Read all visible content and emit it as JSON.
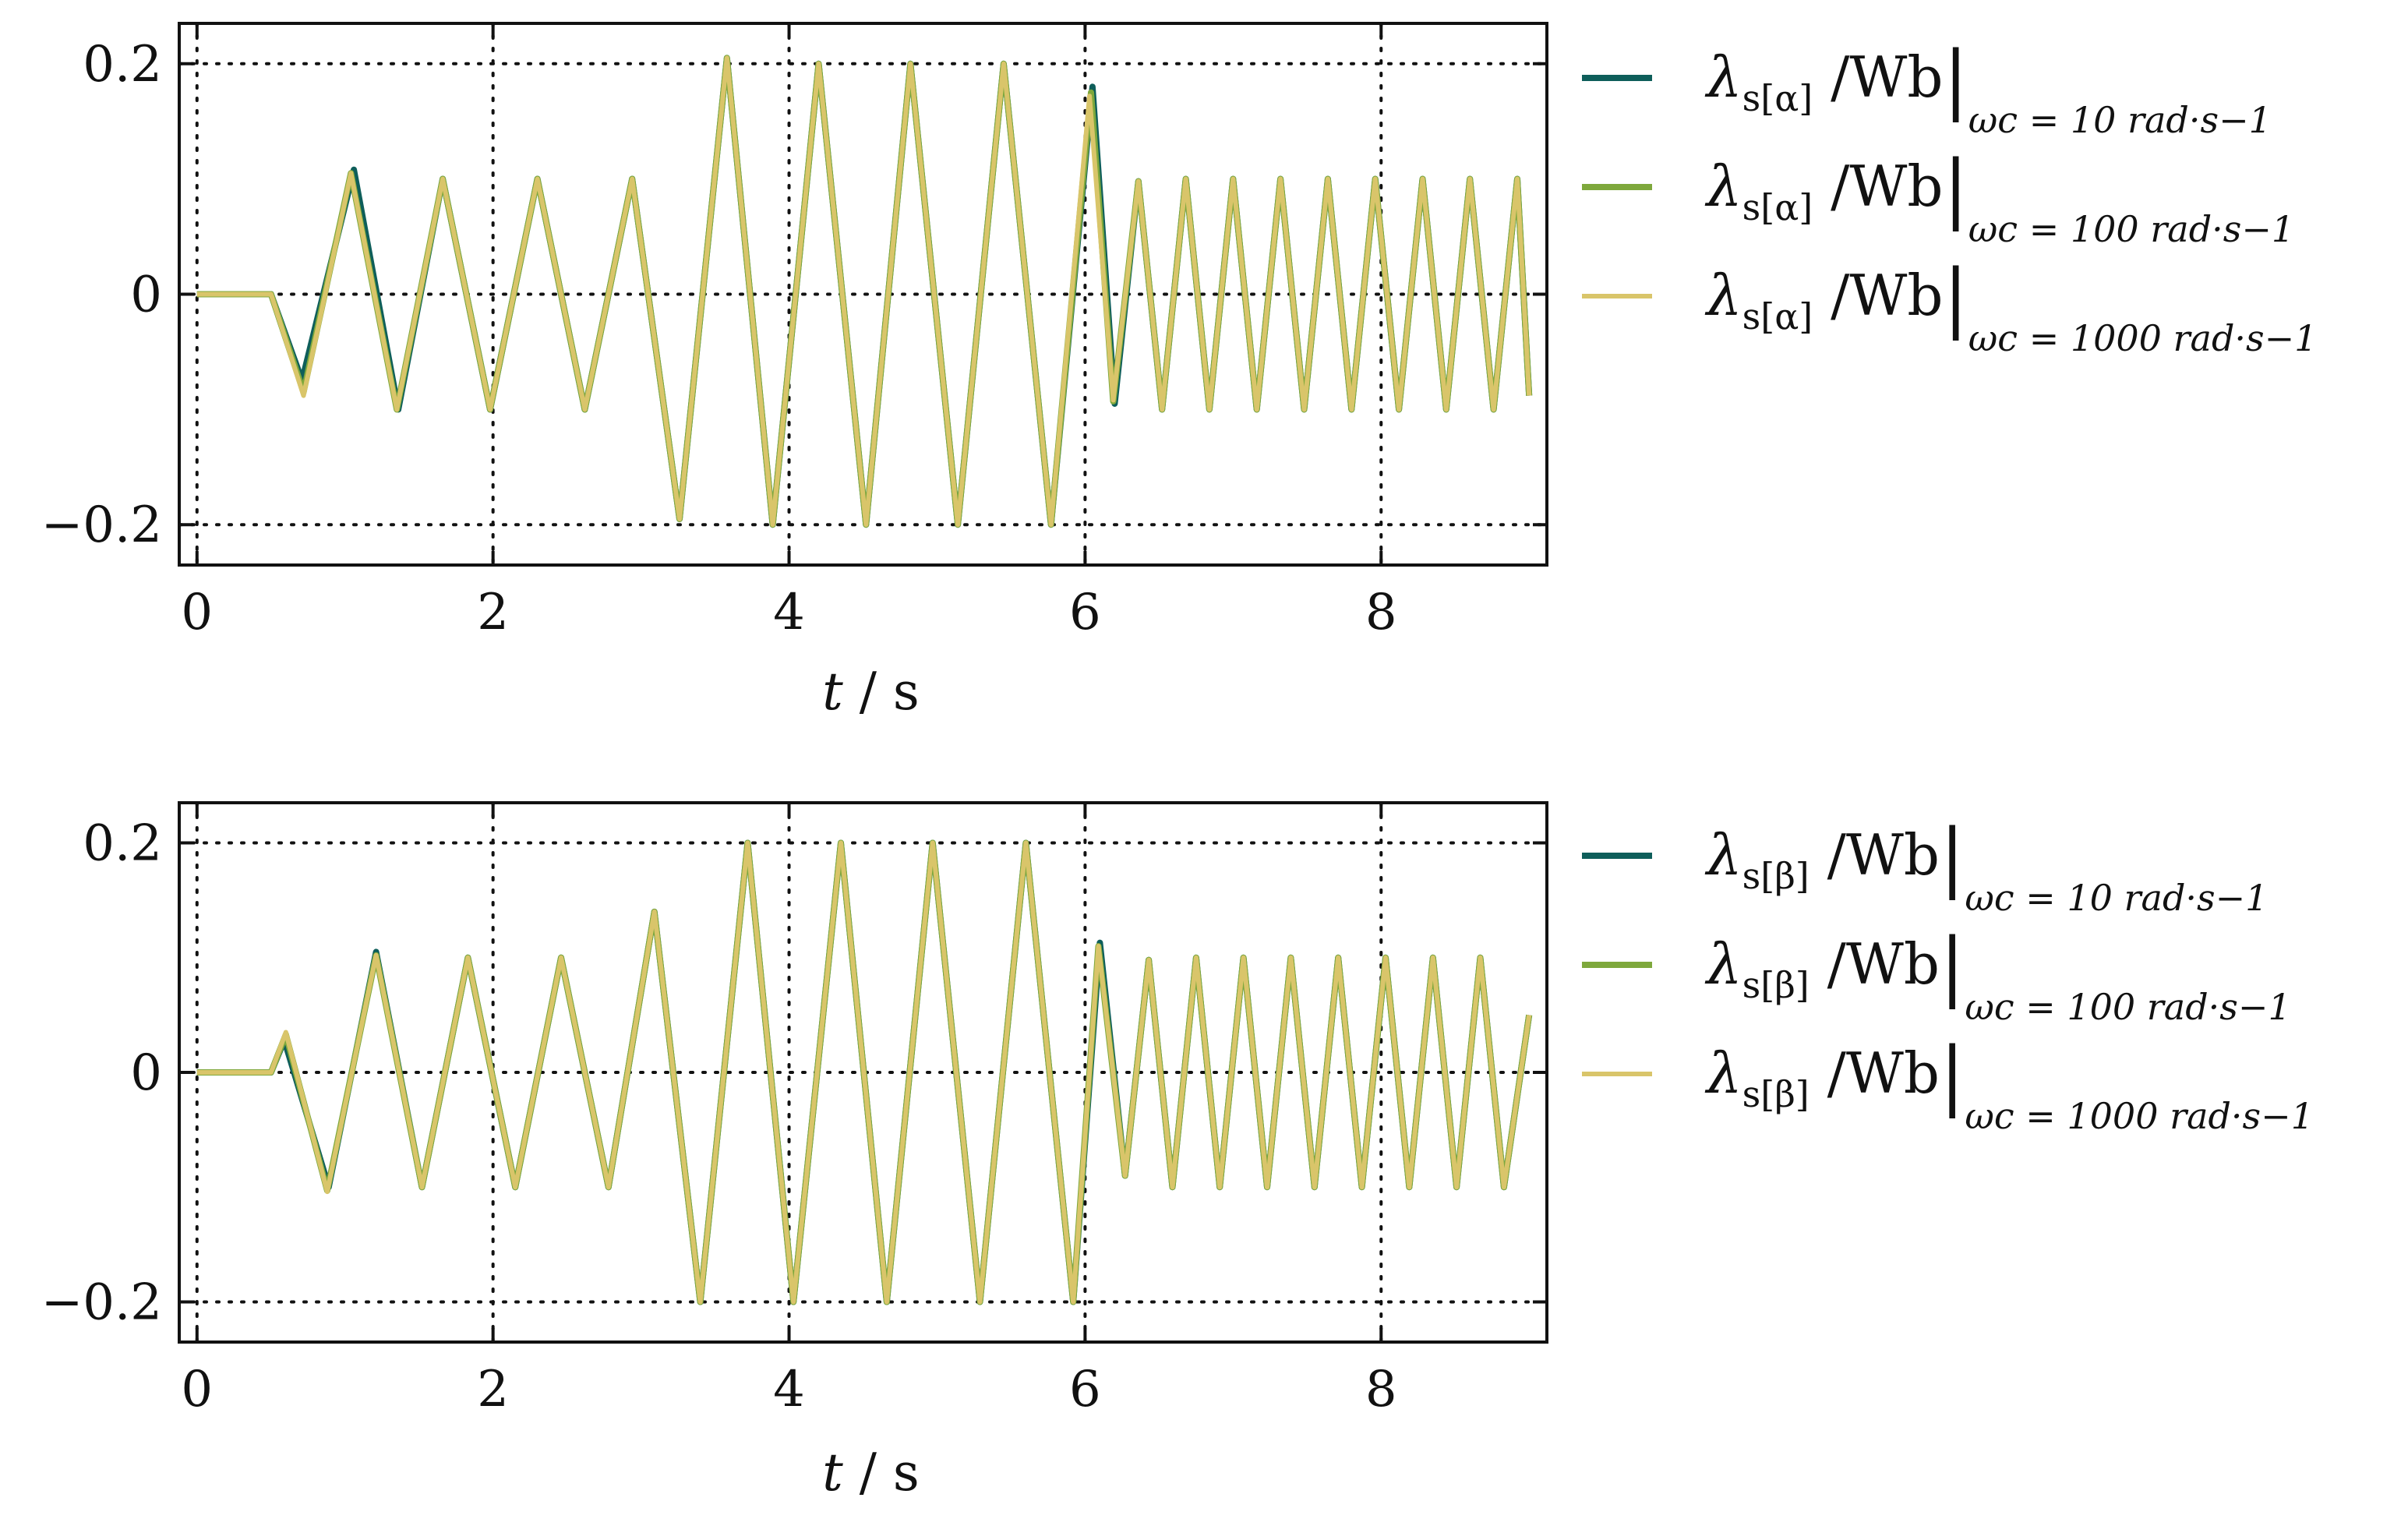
{
  "chart_data": [
    {
      "type": "line",
      "xlabel": "t / s",
      "xlim": [
        -0.12,
        9.12
      ],
      "ylim": [
        -0.235,
        0.235
      ],
      "xticks": [
        0,
        2,
        4,
        6,
        8
      ],
      "yticks": [
        -0.2,
        0,
        0.2
      ],
      "xtick_labels": [
        "0",
        "2",
        "4",
        "6",
        "8"
      ],
      "ytick_labels": [
        "−0.2",
        "0",
        "0.2"
      ],
      "grid": "dotted",
      "legend_position": "right",
      "series": [
        {
          "name": "λs[α] / Wb |ωc = 10 rad·s−1",
          "main": "λ",
          "sub1": "s[α]",
          "rest": "/Wb",
          "sub2": "ωc = 10 rad·s−1",
          "color": "#0e5e5a",
          "x": [
            0,
            0.5,
            0.71,
            1.06,
            1.36,
            1.66,
            1.98,
            2.3,
            2.62,
            2.94,
            3.26,
            3.58,
            3.89,
            4.2,
            4.52,
            4.82,
            5.14,
            5.45,
            5.77,
            6.05,
            6.2,
            6.36,
            6.52,
            6.68,
            6.84,
            7.0,
            7.16,
            7.32,
            7.48,
            7.64,
            7.8,
            7.96,
            8.12,
            8.28,
            8.44,
            8.6,
            8.76,
            8.92,
            9.0
          ],
          "y": [
            0,
            0,
            -0.075,
            0.108,
            -0.1,
            0.1,
            -0.1,
            0.1,
            -0.1,
            0.1,
            -0.195,
            0.205,
            -0.2,
            0.2,
            -0.2,
            0.2,
            -0.2,
            0.2,
            -0.2,
            0.18,
            -0.095,
            0.098,
            -0.1,
            0.1,
            -0.1,
            0.1,
            -0.1,
            0.1,
            -0.1,
            0.1,
            -0.1,
            0.1,
            -0.1,
            0.1,
            -0.1,
            0.1,
            -0.1,
            0.1,
            -0.088
          ]
        },
        {
          "name": "λs[α] / Wb |ωc = 100 rad·s−1",
          "main": "λ",
          "sub1": "s[α]",
          "rest": "/Wb",
          "sub2": "ωc = 100 rad·s−1",
          "color": "#7ea83c",
          "x": [
            0,
            0.5,
            0.72,
            1.04,
            1.35,
            1.66,
            1.98,
            2.3,
            2.62,
            2.94,
            3.26,
            3.58,
            3.89,
            4.2,
            4.52,
            4.82,
            5.14,
            5.45,
            5.77,
            6.04,
            6.19,
            6.36,
            6.52,
            6.68,
            6.84,
            7.0,
            7.16,
            7.32,
            7.48,
            7.64,
            7.8,
            7.96,
            8.12,
            8.28,
            8.44,
            8.6,
            8.76,
            8.92,
            9.0
          ],
          "y": [
            0,
            0,
            -0.085,
            0.105,
            -0.1,
            0.1,
            -0.1,
            0.1,
            -0.1,
            0.1,
            -0.195,
            0.205,
            -0.2,
            0.2,
            -0.2,
            0.2,
            -0.2,
            0.2,
            -0.2,
            0.175,
            -0.093,
            0.098,
            -0.1,
            0.1,
            -0.1,
            0.1,
            -0.1,
            0.1,
            -0.1,
            0.1,
            -0.1,
            0.1,
            -0.1,
            0.1,
            -0.1,
            0.1,
            -0.1,
            0.1,
            -0.088
          ]
        },
        {
          "name": "λs[α] / Wb |ωc = 1000 rad·s−1",
          "main": "λ",
          "sub1": "s[α]",
          "rest": "/Wb",
          "sub2": "ωc = 1000 rad·s−1",
          "color": "#d9c56a",
          "x": [
            0,
            0.5,
            0.72,
            1.04,
            1.35,
            1.66,
            1.98,
            2.3,
            2.62,
            2.94,
            3.26,
            3.58,
            3.89,
            4.2,
            4.52,
            4.82,
            5.14,
            5.45,
            5.77,
            6.03,
            6.19,
            6.36,
            6.52,
            6.68,
            6.84,
            7.0,
            7.16,
            7.32,
            7.48,
            7.64,
            7.8,
            7.96,
            8.12,
            8.28,
            8.44,
            8.6,
            8.76,
            8.92,
            9.0
          ],
          "y": [
            0,
            0,
            -0.088,
            0.105,
            -0.1,
            0.1,
            -0.1,
            0.1,
            -0.1,
            0.1,
            -0.195,
            0.205,
            -0.2,
            0.2,
            -0.2,
            0.2,
            -0.2,
            0.2,
            -0.2,
            0.172,
            -0.092,
            0.098,
            -0.1,
            0.1,
            -0.1,
            0.1,
            -0.1,
            0.1,
            -0.1,
            0.1,
            -0.1,
            0.1,
            -0.1,
            0.1,
            -0.1,
            0.1,
            -0.1,
            0.1,
            -0.088
          ]
        }
      ]
    },
    {
      "type": "line",
      "xlabel": "t / s",
      "xlim": [
        -0.12,
        9.12
      ],
      "ylim": [
        -0.235,
        0.235
      ],
      "xticks": [
        0,
        2,
        4,
        6,
        8
      ],
      "yticks": [
        -0.2,
        0,
        0.2
      ],
      "xtick_labels": [
        "0",
        "2",
        "4",
        "6",
        "8"
      ],
      "ytick_labels": [
        "−0.2",
        "0",
        "0.2"
      ],
      "grid": "dotted",
      "legend_position": "right",
      "series": [
        {
          "name": "λs[β] / Wb |ωc = 10 rad·s−1",
          "main": "λ",
          "sub1": "s[β]",
          "rest": "/Wb",
          "sub2": "ωc = 10 rad·s−1",
          "color": "#0e5e5a",
          "x": [
            0,
            0.5,
            0.59,
            0.89,
            1.21,
            1.52,
            1.83,
            2.15,
            2.46,
            2.78,
            3.09,
            3.4,
            3.72,
            4.03,
            4.35,
            4.66,
            4.97,
            5.29,
            5.6,
            5.92,
            6.1,
            6.27,
            6.43,
            6.59,
            6.75,
            6.91,
            7.07,
            7.23,
            7.39,
            7.55,
            7.71,
            7.87,
            8.03,
            8.19,
            8.35,
            8.51,
            8.67,
            8.83,
            9.0
          ],
          "y": [
            0,
            0,
            0.028,
            -0.1,
            0.105,
            -0.1,
            0.1,
            -0.1,
            0.1,
            -0.1,
            0.14,
            -0.2,
            0.2,
            -0.2,
            0.2,
            -0.2,
            0.2,
            -0.2,
            0.2,
            -0.2,
            0.113,
            -0.09,
            0.098,
            -0.1,
            0.1,
            -0.1,
            0.1,
            -0.1,
            0.1,
            -0.1,
            0.1,
            -0.1,
            0.1,
            -0.1,
            0.1,
            -0.1,
            0.1,
            -0.1,
            0.05
          ]
        },
        {
          "name": "λs[β] / Wb |ωc = 100 rad·s−1",
          "main": "λ",
          "sub1": "s[β]",
          "rest": "/Wb",
          "sub2": "ωc = 100 rad·s−1",
          "color": "#7ea83c",
          "x": [
            0,
            0.5,
            0.6,
            0.88,
            1.21,
            1.52,
            1.83,
            2.15,
            2.46,
            2.78,
            3.09,
            3.4,
            3.72,
            4.03,
            4.35,
            4.66,
            4.97,
            5.29,
            5.6,
            5.92,
            6.09,
            6.27,
            6.43,
            6.59,
            6.75,
            6.91,
            7.07,
            7.23,
            7.39,
            7.55,
            7.71,
            7.87,
            8.03,
            8.19,
            8.35,
            8.51,
            8.67,
            8.83,
            9.0
          ],
          "y": [
            0,
            0,
            0.033,
            -0.103,
            0.102,
            -0.1,
            0.1,
            -0.1,
            0.1,
            -0.1,
            0.14,
            -0.2,
            0.2,
            -0.2,
            0.2,
            -0.2,
            0.2,
            -0.2,
            0.2,
            -0.2,
            0.11,
            -0.09,
            0.098,
            -0.1,
            0.1,
            -0.1,
            0.1,
            -0.1,
            0.1,
            -0.1,
            0.1,
            -0.1,
            0.1,
            -0.1,
            0.1,
            -0.1,
            0.1,
            -0.1,
            0.05
          ]
        },
        {
          "name": "λs[β] / Wb |ωc = 1000 rad·s−1",
          "main": "λ",
          "sub1": "s[β]",
          "rest": "/Wb",
          "sub2": "ωc = 1000 rad·s−1",
          "color": "#d9c56a",
          "x": [
            0,
            0.5,
            0.6,
            0.88,
            1.21,
            1.52,
            1.83,
            2.15,
            2.46,
            2.78,
            3.09,
            3.4,
            3.72,
            4.03,
            4.35,
            4.66,
            4.97,
            5.29,
            5.6,
            5.92,
            6.09,
            6.27,
            6.43,
            6.59,
            6.75,
            6.91,
            7.07,
            7.23,
            7.39,
            7.55,
            7.71,
            7.87,
            8.03,
            8.19,
            8.35,
            8.51,
            8.67,
            8.83,
            9.0
          ],
          "y": [
            0,
            0,
            0.035,
            -0.104,
            0.102,
            -0.1,
            0.1,
            -0.1,
            0.1,
            -0.1,
            0.14,
            -0.2,
            0.2,
            -0.2,
            0.2,
            -0.2,
            0.2,
            -0.2,
            0.2,
            -0.2,
            0.11,
            -0.09,
            0.098,
            -0.1,
            0.1,
            -0.1,
            0.1,
            -0.1,
            0.1,
            -0.1,
            0.1,
            -0.1,
            0.1,
            -0.1,
            0.1,
            -0.1,
            0.1,
            -0.1,
            0.05
          ]
        }
      ]
    }
  ]
}
